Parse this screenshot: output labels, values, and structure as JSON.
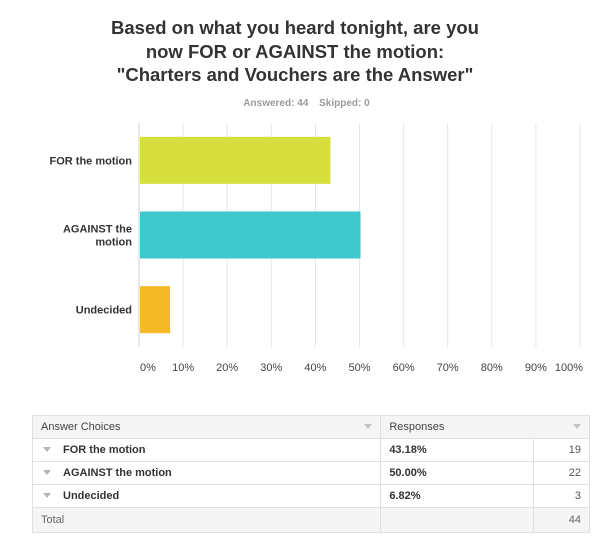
{
  "question": {
    "lines": [
      "Based on what you heard tonight, are you",
      "now FOR or AGAINST the motion:",
      "\"Charters and Vouchers are the Answer\""
    ],
    "answered": "Answered: 44",
    "skipped": "Skipped: 0"
  },
  "chart_data": {
    "type": "bar",
    "orientation": "horizontal",
    "title": "Based on what you heard tonight, are you now FOR or AGAINST the motion: \"Charters and Vouchers are the Answer\"",
    "categories": [
      [
        "FOR the motion"
      ],
      [
        "AGAINST the",
        "motion"
      ],
      [
        "Undecided"
      ]
    ],
    "values": [
      43.18,
      50.0,
      6.82
    ],
    "colors": [
      "#d6df3d",
      "#3cc8cc",
      "#f6b927"
    ],
    "xlim": [
      0,
      100
    ],
    "xticks": [
      "0%",
      "10%",
      "20%",
      "30%",
      "40%",
      "50%",
      "60%",
      "70%",
      "80%",
      "90%",
      "100%"
    ],
    "grid": true,
    "xlabel": "",
    "ylabel": ""
  },
  "table": {
    "headers": [
      "Answer Choices",
      "Responses"
    ],
    "rows": [
      {
        "choice": "FOR the motion",
        "percent": "43.18%",
        "count": "19"
      },
      {
        "choice": "AGAINST the motion",
        "percent": "50.00%",
        "count": "22"
      },
      {
        "choice": "Undecided",
        "percent": "6.82%",
        "count": "3"
      }
    ],
    "total_label": "Total",
    "total_value": "44"
  }
}
